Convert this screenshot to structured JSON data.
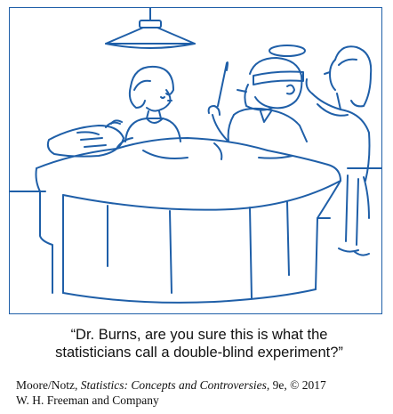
{
  "caption": {
    "line1": "“Dr. Burns, are you sure this is what the",
    "line2": "statisticians call a double-blind experiment?”"
  },
  "credit": {
    "authors": "Moore/Notz, ",
    "book_title": "Statistics: Concepts and Controversies",
    "edition": ", 9e, © 2017",
    "publisher": "W. H. Freeman and Company"
  },
  "colors": {
    "line_art": "#1f5fa8",
    "text": "#111111"
  },
  "illustration": {
    "scene": "operating-room-cartoon",
    "figures": [
      "nurse-figure",
      "surgeon-figure",
      "assistant-figure",
      "patient-figure"
    ]
  }
}
